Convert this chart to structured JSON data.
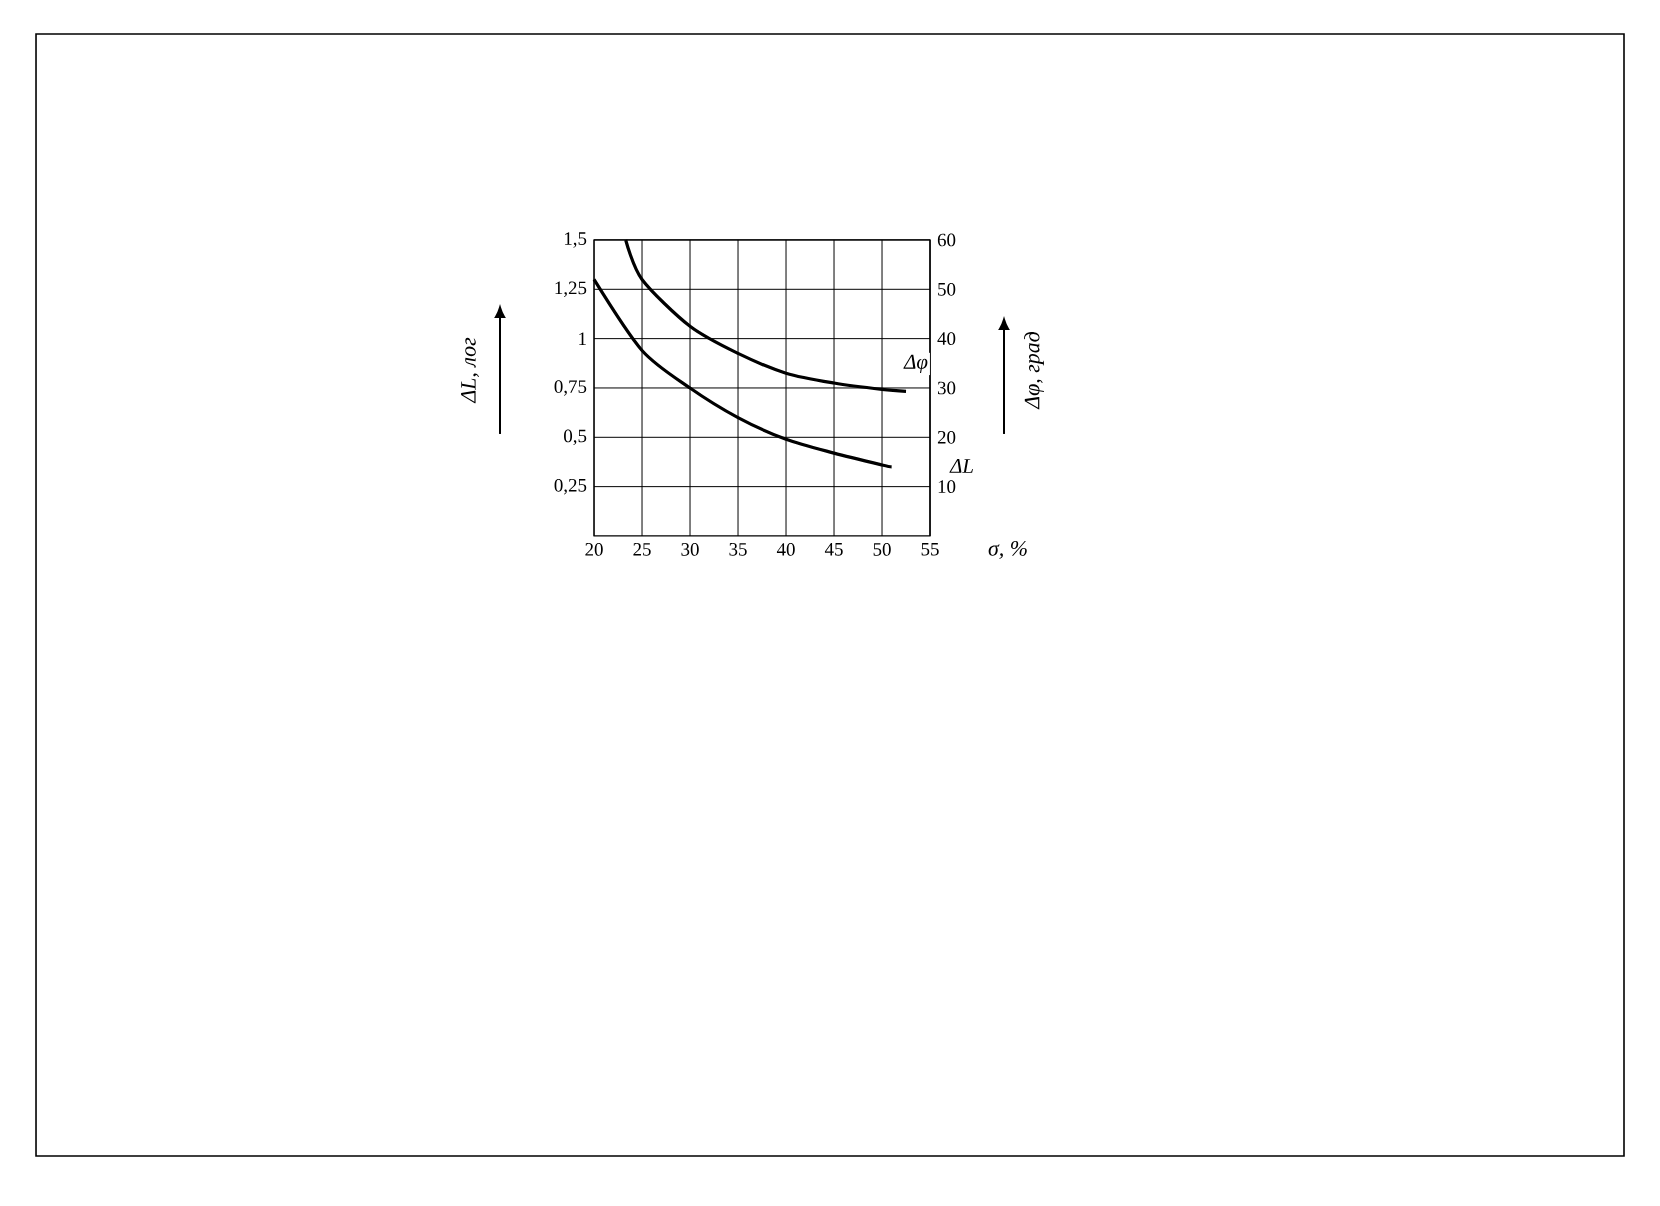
{
  "chart_data": {
    "type": "line",
    "xlabel": "σ, %",
    "ylabel": "ΔL, лог",
    "y2label": "Δφ, град",
    "x": [
      20,
      25,
      30,
      35,
      40,
      45,
      50,
      51
    ],
    "series": [
      {
        "color": "#000000",
        "values": [
          1.3,
          0.94,
          0.75,
          0.6,
          0.49,
          0.42,
          0.36,
          0.35
        ]
      },
      {
        "color": "#000000",
        "axis": "y2",
        "x": [
          23.3,
          25,
          30,
          35,
          40,
          45,
          50,
          52.5
        ],
        "values": [
          60,
          52,
          42.5,
          37,
          33,
          31,
          29.7,
          29.3
        ]
      }
    ],
    "xlim": [
      20,
      55
    ],
    "xticks": [
      20,
      25,
      30,
      35,
      40,
      45,
      50,
      55
    ],
    "ylim": [
      0,
      1.5
    ],
    "yticks": [
      {
        "value": 0.25,
        "label": "0,25"
      },
      {
        "value": 0.5,
        "label": "0,5"
      },
      {
        "value": 0.75,
        "label": "0,75"
      },
      {
        "value": 1,
        "label": "1"
      },
      {
        "value": 1.25,
        "label": "1,25"
      },
      {
        "value": 1.5,
        "label": "1,5"
      }
    ],
    "y2lim": [
      0,
      60
    ],
    "y2ticks": [
      10,
      20,
      30,
      40,
      50,
      60
    ],
    "annotations": [
      "Δφ",
      "ΔL"
    ],
    "grid": true,
    "marker": "none",
    "line_style": "solid"
  }
}
